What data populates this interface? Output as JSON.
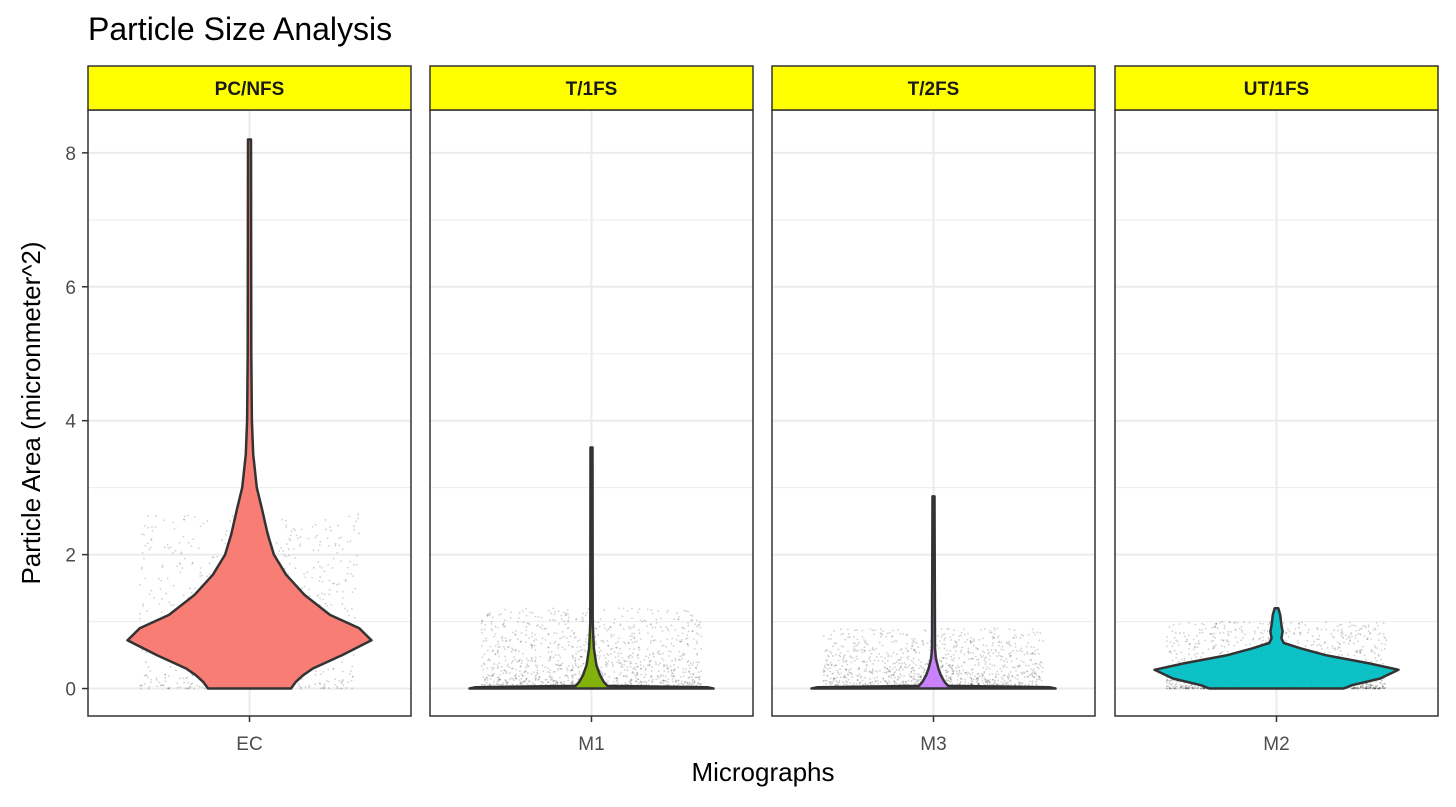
{
  "chart_data": {
    "type": "violin",
    "title": "Particle Size Analysis",
    "xlabel": "Micrographs",
    "ylabel": "Particle Area (micronmeter^2)",
    "ylim": [
      -0.41,
      8.64
    ],
    "yticks": [
      0,
      2,
      4,
      6,
      8
    ],
    "grid": true,
    "strip_color": "#FFFF00",
    "panels": [
      {
        "facet": "PC/NFS",
        "category": "EC",
        "color": "#F8766D",
        "max": 8.2,
        "profile": [
          [
            0,
            0.34
          ],
          [
            0.1,
            0.38
          ],
          [
            0.2,
            0.44
          ],
          [
            0.3,
            0.52
          ],
          [
            0.5,
            0.76
          ],
          [
            0.72,
            1.0
          ],
          [
            0.9,
            0.9
          ],
          [
            1.1,
            0.66
          ],
          [
            1.4,
            0.45
          ],
          [
            1.7,
            0.3
          ],
          [
            2.0,
            0.2
          ],
          [
            2.3,
            0.15
          ],
          [
            2.7,
            0.1
          ],
          [
            3.0,
            0.06
          ],
          [
            3.5,
            0.03
          ],
          [
            4.0,
            0.02
          ],
          [
            5.0,
            0.015
          ],
          [
            8.2,
            0.012
          ]
        ],
        "jitter_max": 2.6
      },
      {
        "facet": "T/1FS",
        "category": "M1",
        "color": "#7CAE00",
        "max": 3.6,
        "profile": [
          [
            0,
            1.0
          ],
          [
            0.02,
            0.95
          ],
          [
            0.04,
            0.13
          ],
          [
            0.1,
            0.1
          ],
          [
            0.2,
            0.07
          ],
          [
            0.35,
            0.04
          ],
          [
            0.6,
            0.02
          ],
          [
            0.8,
            0.014
          ],
          [
            1.0,
            0.01
          ],
          [
            3.6,
            0.008
          ]
        ],
        "jitter_max": 1.2
      },
      {
        "facet": "T/2FS",
        "category": "M3",
        "color": "#C77CFF",
        "max": 2.87,
        "profile": [
          [
            0,
            1.0
          ],
          [
            0.02,
            0.95
          ],
          [
            0.04,
            0.12
          ],
          [
            0.1,
            0.09
          ],
          [
            0.2,
            0.06
          ],
          [
            0.3,
            0.04
          ],
          [
            0.45,
            0.02
          ],
          [
            0.6,
            0.012
          ],
          [
            2.87,
            0.008
          ]
        ],
        "jitter_max": 0.9
      },
      {
        "facet": "UT/1FS",
        "category": "M2",
        "color": "#00BFC4",
        "max": 1.2,
        "profile": [
          [
            0,
            0.55
          ],
          [
            0.05,
            0.62
          ],
          [
            0.15,
            0.85
          ],
          [
            0.28,
            1.0
          ],
          [
            0.38,
            0.75
          ],
          [
            0.5,
            0.4
          ],
          [
            0.6,
            0.2
          ],
          [
            0.68,
            0.06
          ],
          [
            0.75,
            0.04
          ],
          [
            0.85,
            0.05
          ],
          [
            0.95,
            0.04
          ],
          [
            1.1,
            0.03
          ],
          [
            1.2,
            0.015
          ]
        ],
        "jitter_max": 1.0
      }
    ]
  }
}
